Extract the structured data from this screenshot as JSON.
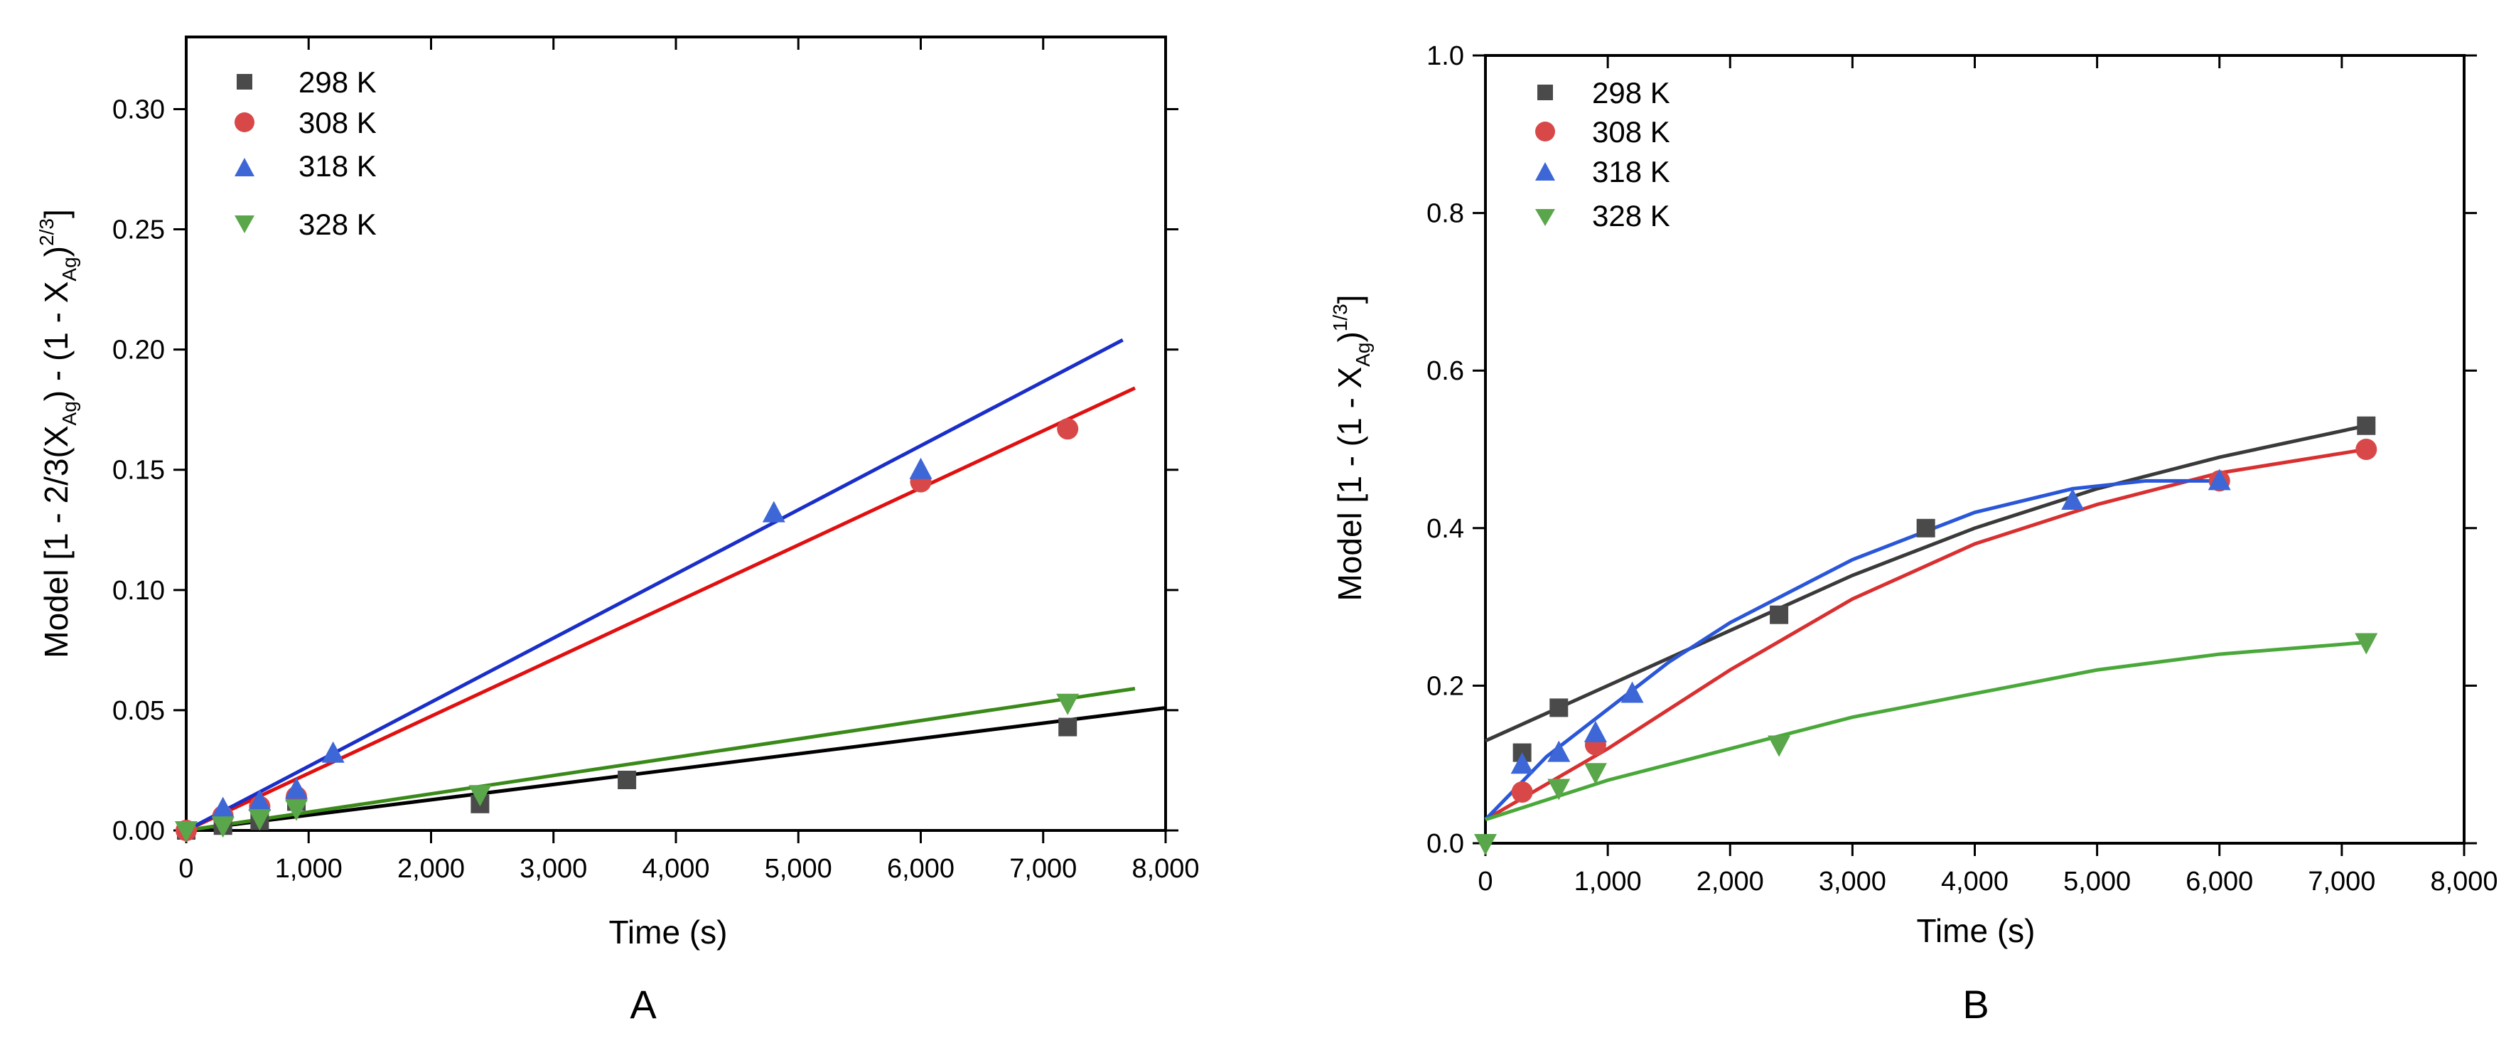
{
  "figure": {
    "panel_a_label": "A",
    "panel_b_label": "B"
  },
  "chart_data": [
    {
      "type": "scatter",
      "panel": "A",
      "xlabel": "Time (s)",
      "ylabel_main": "Model [1 - 2/3(X",
      "ylabel_sub": "Ag",
      "ylabel_mid": ") - (1 - X",
      "ylabel_sub2": "Ag",
      "ylabel_end": ")",
      "ylabel_sup": "2/3",
      "ylabel_close": "]",
      "xlim": [
        0,
        8000
      ],
      "ylim": [
        0,
        0.33
      ],
      "xticks": [
        0,
        1000,
        2000,
        3000,
        4000,
        5000,
        6000,
        7000,
        8000
      ],
      "xtick_labels": [
        "0",
        "1,000",
        "2,000",
        "3,000",
        "4,000",
        "5,000",
        "6,000",
        "7,000",
        "8,000"
      ],
      "yticks": [
        0,
        0.05,
        0.1,
        0.15,
        0.2,
        0.25,
        0.3
      ],
      "ytick_labels": [
        "0.00",
        "0.05",
        "0.10",
        "0.15",
        "0.20",
        "0.25",
        "0.30"
      ],
      "legend_position": "top-left",
      "series": [
        {
          "name": "298 K",
          "marker": "square",
          "color": "#4a4a4a",
          "line_color": "#000000",
          "x": [
            0,
            300,
            600,
            900,
            2400,
            3600,
            7200
          ],
          "y": [
            0.0,
            0.002,
            0.004,
            0.012,
            0.011,
            0.021,
            0.043
          ],
          "fit": {
            "x": [
              0,
              8000
            ],
            "y": [
              0.0,
              0.051
            ]
          }
        },
        {
          "name": "308 K",
          "marker": "circle",
          "color": "#d94848",
          "line_color": "#e01010",
          "x": [
            0,
            300,
            600,
            900,
            6000,
            7200
          ],
          "y": [
            0.0,
            0.006,
            0.01,
            0.014,
            0.145,
            0.167
          ],
          "fit": {
            "x": [
              0,
              7750
            ],
            "y": [
              0.0,
              0.184
            ]
          }
        },
        {
          "name": "318 K",
          "marker": "triangle-up",
          "color": "#3d67d6",
          "line_color": "#1a2ec8",
          "x": [
            300,
            600,
            900,
            1200,
            4800,
            6000
          ],
          "y": [
            0.009,
            0.012,
            0.017,
            0.032,
            0.132,
            0.15
          ],
          "fit": {
            "x": [
              0,
              7650
            ],
            "y": [
              0.0,
              0.204
            ]
          }
        },
        {
          "name": "328 K",
          "marker": "triangle-down",
          "color": "#5aa64a",
          "line_color": "#3a8a1a",
          "x": [
            0,
            300,
            600,
            900,
            2400,
            7200
          ],
          "y": [
            0.0,
            0.002,
            0.005,
            0.009,
            0.015,
            0.053
          ],
          "fit": {
            "x": [
              0,
              7750
            ],
            "y": [
              0.0,
              0.059
            ]
          }
        }
      ]
    },
    {
      "type": "scatter",
      "panel": "B",
      "xlabel": "Time (s)",
      "ylabel_main": "Model [1 - (1 - X",
      "ylabel_sub": "Ag",
      "ylabel_end": ")",
      "ylabel_sup": "1/3",
      "ylabel_close": "]",
      "xlim": [
        0,
        8000
      ],
      "ylim": [
        0,
        1.0
      ],
      "xticks": [
        0,
        1000,
        2000,
        3000,
        4000,
        5000,
        6000,
        7000,
        8000
      ],
      "xtick_labels": [
        "0",
        "1,000",
        "2,000",
        "3,000",
        "4,000",
        "5,000",
        "6,000",
        "7,000",
        "8,000"
      ],
      "yticks": [
        0,
        0.2,
        0.4,
        0.6,
        0.8,
        1.0
      ],
      "ytick_labels": [
        "0.0",
        "0.2",
        "0.4",
        "0.6",
        "0.8",
        "1.0"
      ],
      "legend_position": "top-left",
      "series": [
        {
          "name": "298 K",
          "marker": "square",
          "color": "#4a4a4a",
          "line_color": "#3a3a3a",
          "x": [
            300,
            600,
            2400,
            3600,
            7200
          ],
          "y": [
            0.115,
            0.172,
            0.29,
            0.4,
            0.53
          ],
          "fit": {
            "x": [
              0,
              1000,
              2000,
              3000,
              4000,
              5000,
              6000,
              7200
            ],
            "y": [
              0.13,
              0.2,
              0.27,
              0.34,
              0.4,
              0.45,
              0.49,
              0.53
            ]
          }
        },
        {
          "name": "308 K",
          "marker": "circle",
          "color": "#d94848",
          "line_color": "#d83030",
          "x": [
            300,
            900,
            6000,
            7200
          ],
          "y": [
            0.065,
            0.125,
            0.46,
            0.5
          ],
          "fit": {
            "x": [
              0,
              1000,
              2000,
              3000,
              4000,
              5000,
              6000,
              7200
            ],
            "y": [
              0.03,
              0.12,
              0.22,
              0.31,
              0.38,
              0.43,
              0.47,
              0.5
            ]
          }
        },
        {
          "name": "318 K",
          "marker": "triangle-up",
          "color": "#3d67d6",
          "line_color": "#2a56d8",
          "x": [
            300,
            600,
            900,
            1200,
            4800,
            6000
          ],
          "y": [
            0.1,
            0.115,
            0.14,
            0.19,
            0.435,
            0.46
          ],
          "fit": {
            "x": [
              0,
              500,
              1000,
              1500,
              2000,
              3000,
              4000,
              4800,
              5400,
              6000
            ],
            "y": [
              0.03,
              0.11,
              0.17,
              0.23,
              0.28,
              0.36,
              0.42,
              0.45,
              0.46,
              0.46
            ]
          }
        },
        {
          "name": "328 K",
          "marker": "triangle-down",
          "color": "#5aa64a",
          "line_color": "#4aa83a",
          "x": [
            0,
            600,
            900,
            2400,
            7200
          ],
          "y": [
            0.0,
            0.07,
            0.09,
            0.125,
            0.255
          ],
          "fit": {
            "x": [
              0,
              1000,
              2000,
              3000,
              4000,
              5000,
              6000,
              7200
            ],
            "y": [
              0.03,
              0.08,
              0.12,
              0.16,
              0.19,
              0.22,
              0.24,
              0.255
            ]
          }
        }
      ]
    }
  ]
}
